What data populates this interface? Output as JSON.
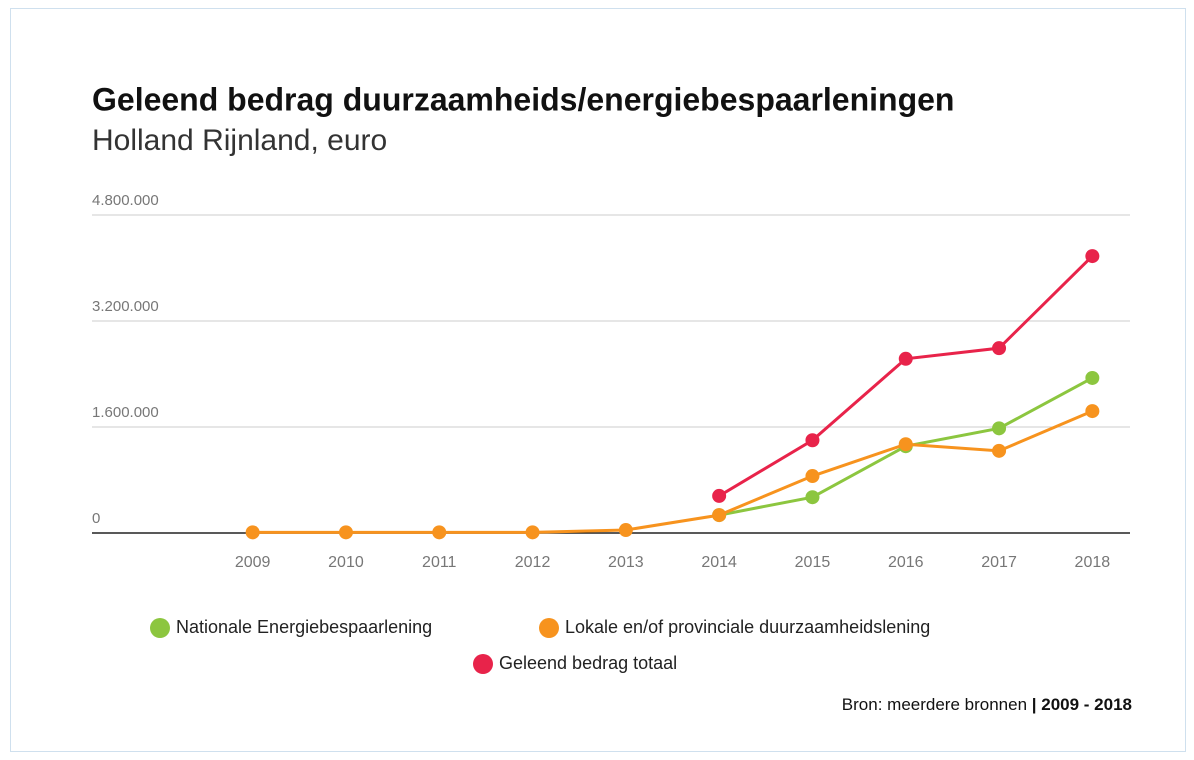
{
  "chart_data": {
    "type": "line",
    "title": "Geleend bedrag duurzaamheids/energiebespaarleningen",
    "subtitle": "Holland Rijnland, euro",
    "categories": [
      "2009",
      "2010",
      "2011",
      "2012",
      "2013",
      "2014",
      "2015",
      "2016",
      "2017",
      "2018"
    ],
    "series": [
      {
        "name": "Nationale Energiebespaarlening",
        "color": "#8cc63f",
        "values": [
          null,
          null,
          null,
          null,
          null,
          270000,
          540000,
          1310000,
          1580000,
          2340000
        ]
      },
      {
        "name": "Lokale en/of provinciale duurzaamheidslening",
        "color": "#f7931e",
        "values": [
          10000,
          10000,
          10000,
          10000,
          45000,
          270000,
          860000,
          1340000,
          1240000,
          1840000
        ]
      },
      {
        "name": "Geleend bedrag totaal",
        "color": "#e8234a",
        "values": [
          null,
          null,
          null,
          null,
          null,
          560000,
          1400000,
          2630000,
          2790000,
          4180000
        ]
      }
    ],
    "ylim": [
      0,
      4800000
    ],
    "yticks": [
      0,
      {
        "value": 1600000,
        "label": "1.600.000"
      },
      {
        "value": 3200000,
        "label": "3.200.000"
      },
      {
        "value": 4800000,
        "label": "4.800.000"
      }
    ],
    "grid": true,
    "source": "Bron: meerdere bronnen",
    "source_period": "| 2009 - 2018"
  }
}
